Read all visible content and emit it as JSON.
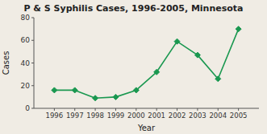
{
  "chart_data": {
    "type": "line",
    "title": "P & S Syphilis Cases, 1996-2005, Minnesota",
    "x_label": "Year",
    "y_label": "Cases",
    "x": [
      1996,
      1997,
      1998,
      1999,
      2000,
      2001,
      2002,
      2003,
      2004,
      2005
    ],
    "values": [
      16,
      16,
      9,
      10,
      16,
      32,
      59,
      47,
      26,
      70
    ],
    "color": "#1a9850",
    "marker": "diamond",
    "xlim": [
      1995,
      2006
    ],
    "xticks": [
      1996,
      1997,
      1998,
      1999,
      2000,
      2001,
      2002,
      2003,
      2004,
      2005
    ],
    "ylim": [
      0,
      80
    ],
    "yticks": [
      0,
      20,
      40,
      60,
      80
    ],
    "grid": false
  }
}
